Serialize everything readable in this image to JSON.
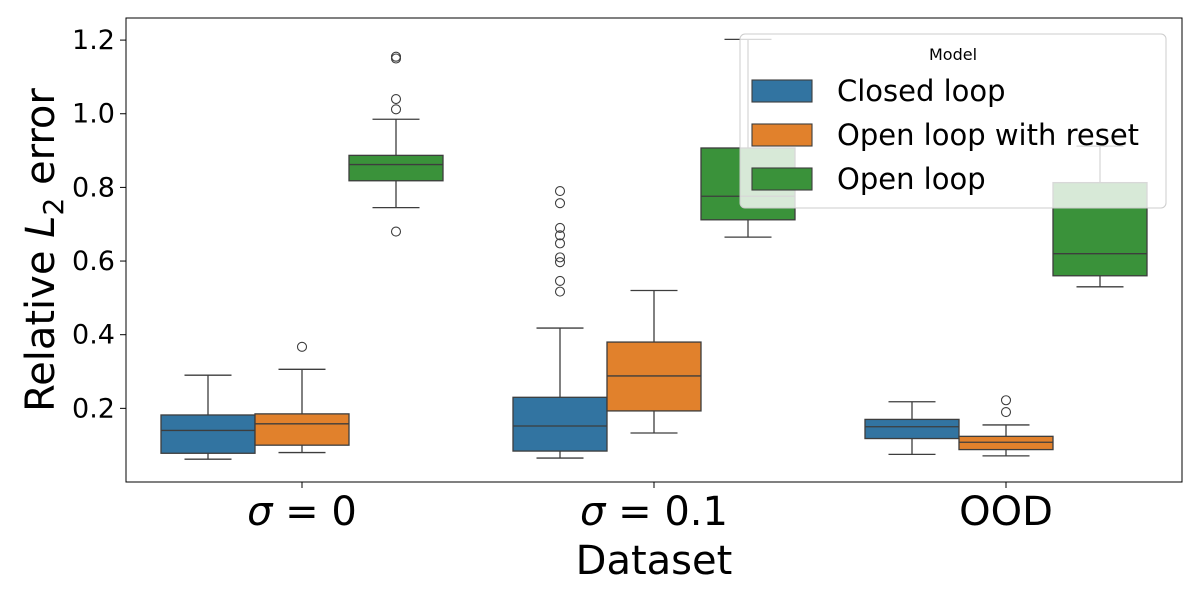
{
  "chart_data": {
    "type": "box",
    "xlabel": "Dataset",
    "ylabel_main": "Relative ",
    "ylabel_var": "L",
    "ylabel_sub": "2",
    "ylabel_rest": " error",
    "categories": [
      {
        "prefix": "σ",
        "suffix": " = 0"
      },
      {
        "prefix": "σ",
        "suffix": " = 0.1"
      },
      {
        "prefix": "",
        "suffix": "OOD"
      }
    ],
    "ylim": [
      0.0,
      1.26
    ],
    "yticks": [
      "0.2",
      "0.4",
      "0.6",
      "0.8",
      "1.0",
      "1.2"
    ],
    "ytick_values": [
      0.2,
      0.4,
      0.6,
      0.8,
      1.0,
      1.2
    ],
    "legend": {
      "title": "Model",
      "placement": "upper right"
    },
    "series": [
      {
        "name": "Closed loop",
        "color": "#3274a1",
        "boxes": [
          {
            "whisker_low": 0.062,
            "q1": 0.078,
            "median": 0.14,
            "q3": 0.182,
            "whisker_high": 0.29,
            "outliers": []
          },
          {
            "whisker_low": 0.065,
            "q1": 0.084,
            "median": 0.152,
            "q3": 0.23,
            "whisker_high": 0.418,
            "outliers": [
              0.517,
              0.546,
              0.597,
              0.61,
              0.648,
              0.67,
              0.69,
              0.757,
              0.79
            ]
          },
          {
            "whisker_low": 0.075,
            "q1": 0.118,
            "median": 0.15,
            "q3": 0.17,
            "whisker_high": 0.218,
            "outliers": []
          }
        ]
      },
      {
        "name": "Open loop with reset",
        "color": "#e1812c",
        "boxes": [
          {
            "whisker_low": 0.08,
            "q1": 0.1,
            "median": 0.158,
            "q3": 0.185,
            "whisker_high": 0.306,
            "outliers": [
              0.367
            ]
          },
          {
            "whisker_low": 0.133,
            "q1": 0.193,
            "median": 0.288,
            "q3": 0.38,
            "whisker_high": 0.52,
            "outliers": []
          },
          {
            "whisker_low": 0.071,
            "q1": 0.088,
            "median": 0.108,
            "q3": 0.124,
            "whisker_high": 0.155,
            "outliers": [
              0.19,
              0.222
            ]
          }
        ]
      },
      {
        "name": "Open loop",
        "color": "#3a923a",
        "boxes": [
          {
            "whisker_low": 0.745,
            "q1": 0.818,
            "median": 0.862,
            "q3": 0.887,
            "whisker_high": 0.985,
            "outliers": [
              0.68,
              1.012,
              1.04,
              1.15,
              1.155
            ]
          },
          {
            "whisker_low": 0.665,
            "q1": 0.712,
            "median": 0.776,
            "q3": 0.907,
            "whisker_high": 1.202,
            "outliers": []
          },
          {
            "whisker_low": 0.53,
            "q1": 0.56,
            "median": 0.62,
            "q3": 0.813,
            "whisker_high": 0.912,
            "outliers": []
          }
        ]
      }
    ]
  }
}
